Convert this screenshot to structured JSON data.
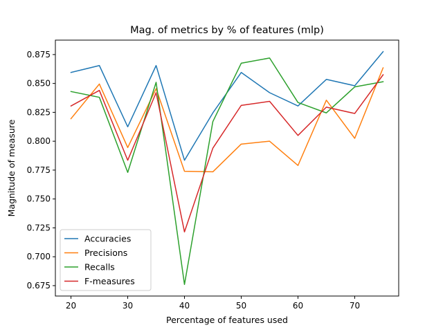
{
  "chart_data": {
    "type": "line",
    "title": "Mag. of metrics by % of features (mlp)",
    "xlabel": "Percentage of features used",
    "ylabel": "Magnitude of measure",
    "x": [
      20,
      25,
      30,
      35,
      40,
      45,
      50,
      55,
      60,
      65,
      70,
      75
    ],
    "xlim": [
      17.25,
      77.75
    ],
    "ylim": [
      0.666,
      0.8875
    ],
    "xticks": [
      20,
      30,
      40,
      50,
      60,
      70
    ],
    "yticks": [
      0.675,
      0.7,
      0.725,
      0.75,
      0.775,
      0.8,
      0.825,
      0.85,
      0.875
    ],
    "ytick_labels": [
      "0.675",
      "0.700",
      "0.725",
      "0.750",
      "0.775",
      "0.800",
      "0.825",
      "0.850",
      "0.875"
    ],
    "grid": false,
    "legend_position": "lower-left",
    "series": [
      {
        "name": "Accuracies",
        "color": "#1f77b4",
        "values": [
          0.8595,
          0.8655,
          0.8125,
          0.8655,
          0.7835,
          0.8245,
          0.8595,
          0.842,
          0.8305,
          0.8535,
          0.848,
          0.8775
        ]
      },
      {
        "name": "Precisions",
        "color": "#ff7f0e",
        "values": [
          0.8195,
          0.8495,
          0.7945,
          0.8455,
          0.774,
          0.7735,
          0.7975,
          0.8,
          0.779,
          0.8355,
          0.8025,
          0.8635
        ]
      },
      {
        "name": "Recalls",
        "color": "#2ca02c",
        "values": [
          0.843,
          0.838,
          0.773,
          0.851,
          0.676,
          0.817,
          0.8675,
          0.872,
          0.8335,
          0.8245,
          0.847,
          0.8515
        ]
      },
      {
        "name": "F-measures",
        "color": "#d62728",
        "values": [
          0.8305,
          0.844,
          0.7835,
          0.842,
          0.7215,
          0.794,
          0.831,
          0.8345,
          0.805,
          0.8295,
          0.824,
          0.8575
        ]
      }
    ]
  }
}
